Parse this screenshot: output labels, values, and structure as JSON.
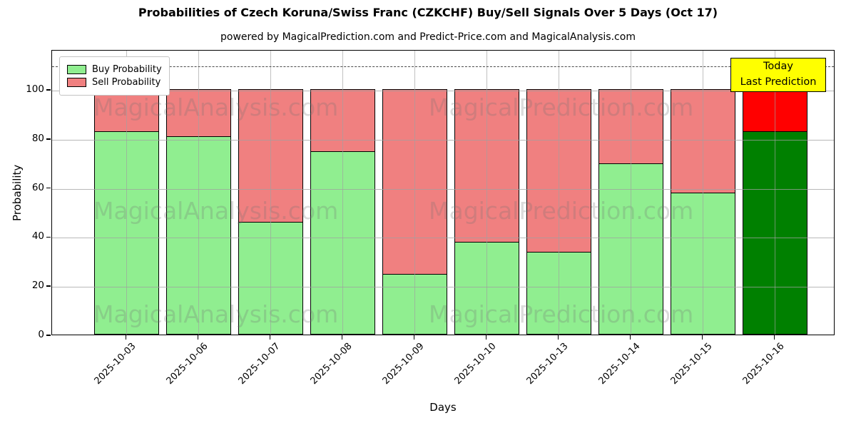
{
  "header": {
    "title": "Probabilities of Czech Koruna/Swiss Franc (CZKCHF) Buy/Sell Signals Over 5 Days (Oct 17)",
    "subtitle": "powered by MagicalPrediction.com and Predict-Price.com and MagicalAnalysis.com"
  },
  "watermarks": {
    "left_text": "MagicalAnalysis.com",
    "right_text": "MagicalPrediction.com"
  },
  "chart_data": {
    "type": "bar",
    "stacked": true,
    "title": "Probabilities of Czech Koruna/Swiss Franc (CZKCHF) Buy/Sell Signals Over 5 Days (Oct 17)",
    "subtitle": "powered by MagicalPrediction.com and Predict-Price.com and MagicalAnalysis.com",
    "xlabel": "Days",
    "ylabel": "Probability",
    "categories": [
      "2025-10-03",
      "2025-10-06",
      "2025-10-07",
      "2025-10-08",
      "2025-10-09",
      "2025-10-10",
      "2025-10-13",
      "2025-10-14",
      "2025-10-15",
      "2025-10-16"
    ],
    "series": [
      {
        "name": "Buy Probability",
        "color": "#90ee90",
        "highlight_color": "#008000",
        "values": [
          83,
          81,
          46,
          75,
          25,
          38,
          34,
          70,
          58,
          83
        ]
      },
      {
        "name": "Sell Probability",
        "color": "#f08080",
        "highlight_color": "#ff0000",
        "values": [
          17,
          19,
          54,
          25,
          75,
          62,
          66,
          30,
          42,
          17
        ]
      }
    ],
    "highlight_index": 9,
    "yticks": [
      0,
      20,
      40,
      60,
      80,
      100
    ],
    "ylim": [
      0,
      116
    ],
    "grid": true,
    "threshold_line": {
      "y": 110,
      "style": "dashed",
      "color": "#4a4a4a"
    },
    "legend_position": "upper-left",
    "annotation": {
      "lines": [
        "Today",
        "Last Prediction"
      ],
      "bg_color": "#ffff00",
      "position": "top-right"
    }
  }
}
